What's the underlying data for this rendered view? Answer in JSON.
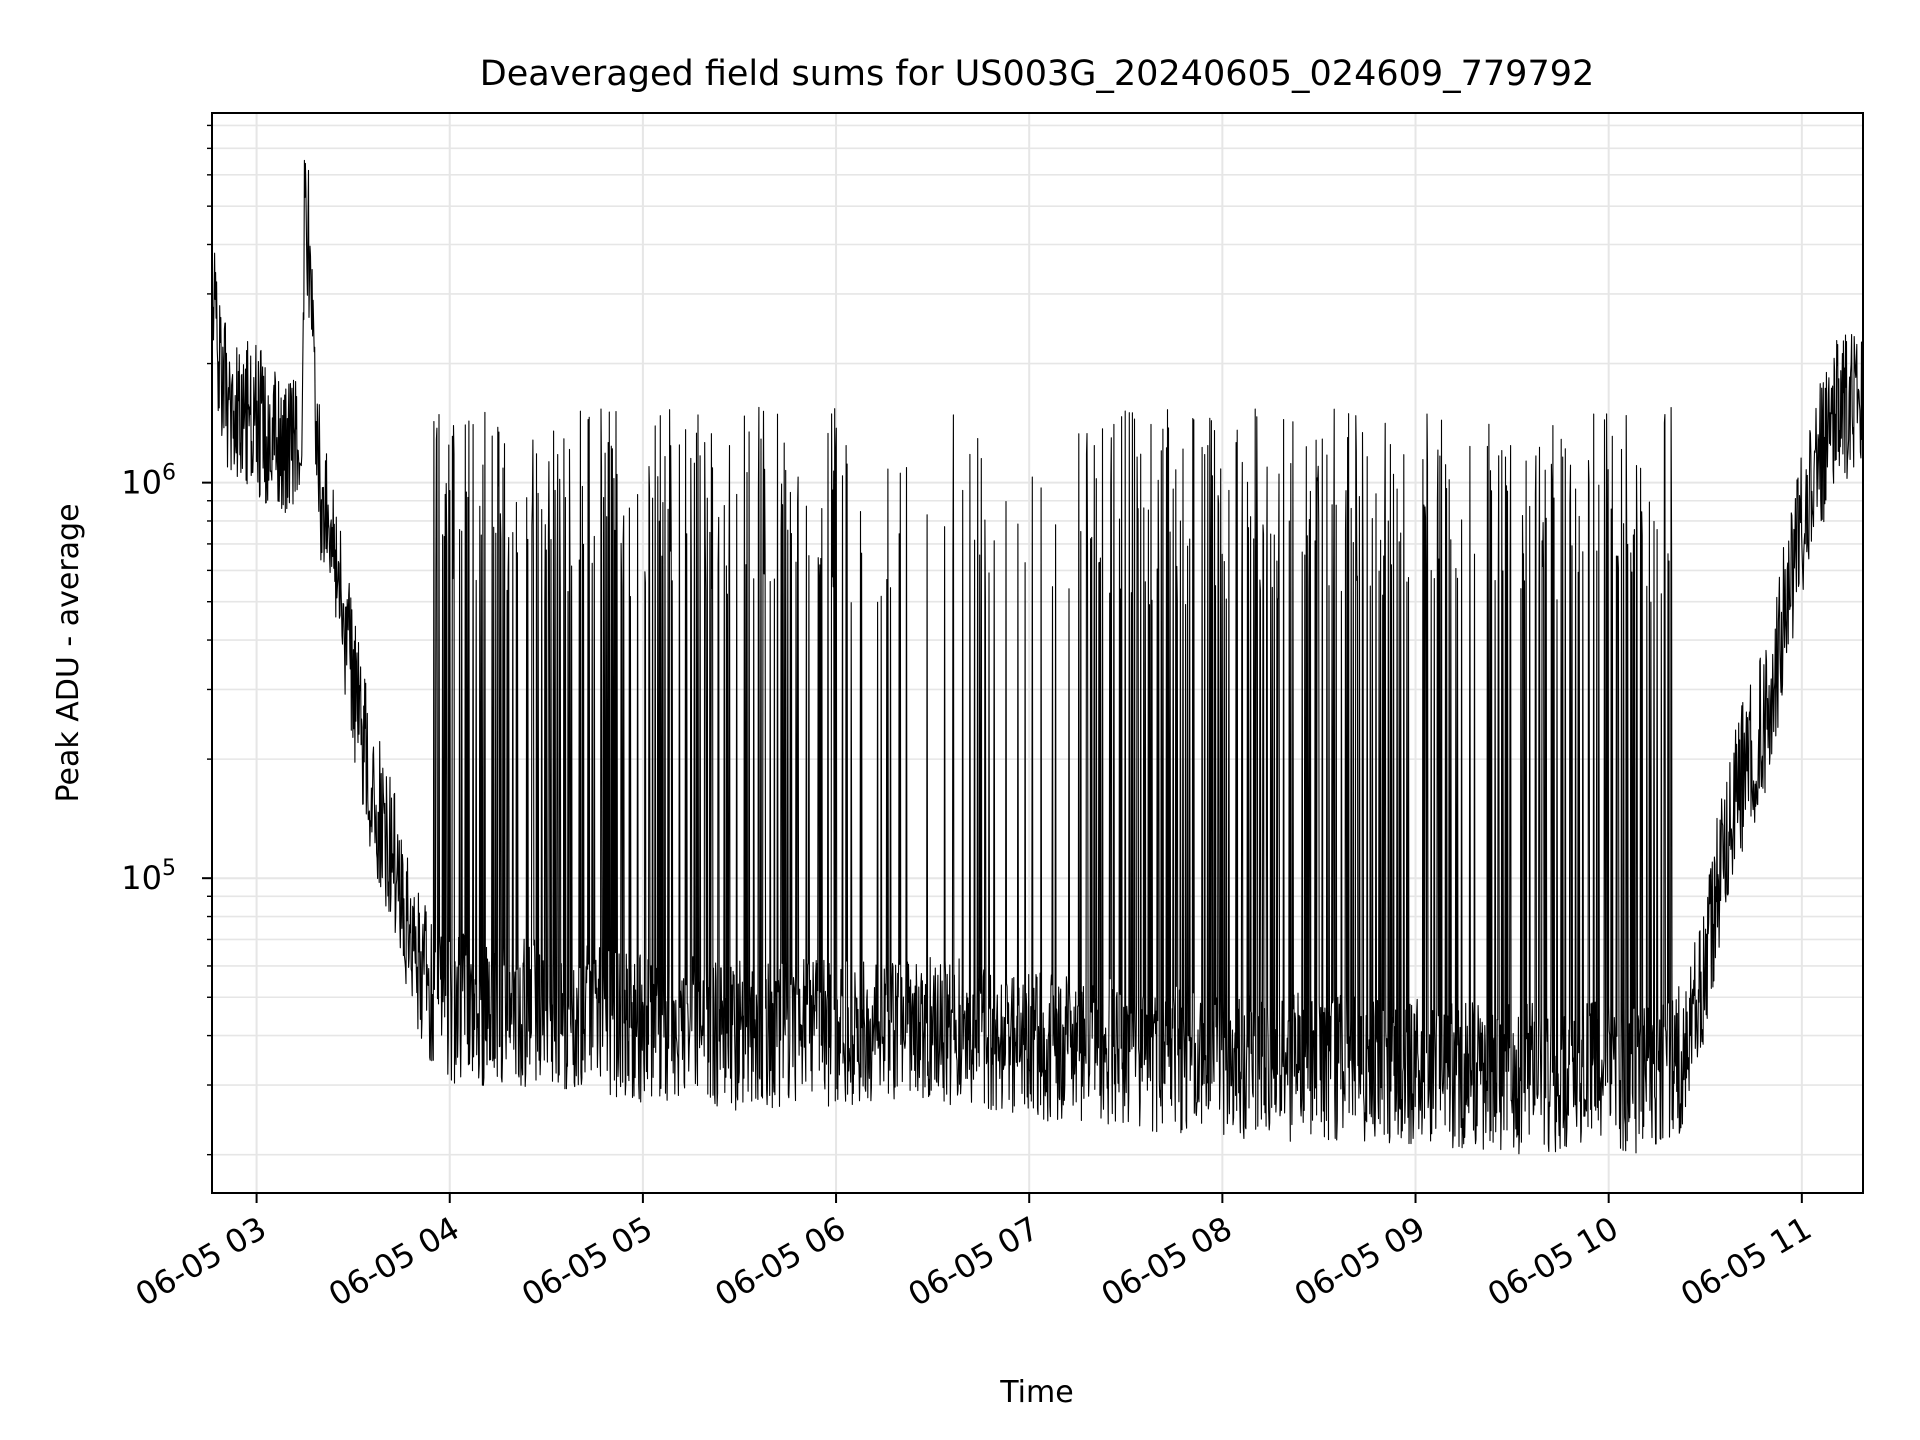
{
  "chart_data": {
    "type": "line",
    "title": "Deaveraged field sums for US003G_20240605_024609_779792",
    "xlabel": "Time",
    "ylabel": "Peak ADU - average",
    "yscale": "log",
    "ylim": [
      16000,
      8600000
    ],
    "xlim": [
      "2024-06-05T02:46:09",
      "2024-06-05T11:19:00"
    ],
    "x_tick_labels": [
      "06-05 03",
      "06-05 04",
      "06-05 05",
      "06-05 06",
      "06-05 07",
      "06-05 08",
      "06-05 09",
      "06-05 10",
      "06-05 11"
    ],
    "x_tick_values": [
      "2024-06-05T03:00",
      "2024-06-05T04:00",
      "2024-06-05T05:00",
      "2024-06-05T06:00",
      "2024-06-05T07:00",
      "2024-06-05T08:00",
      "2024-06-05T09:00",
      "2024-06-05T10:00",
      "2024-06-05T11:00"
    ],
    "y_tick_labels": [
      {
        "value": 100000,
        "base": "10",
        "exp": "5"
      },
      {
        "value": 1000000,
        "base": "10",
        "exp": "6"
      }
    ],
    "grid": true,
    "line_color": "#000000",
    "grid_color": "#e6e6e6",
    "series": [
      {
        "x": [
          "02:46",
          "02:50",
          "02:55",
          "03:00",
          "03:05",
          "03:10",
          "03:14",
          "03:15",
          "03:20",
          "03:25",
          "03:30",
          "03:35",
          "03:40",
          "03:45",
          "03:50",
          "03:55",
          "04:00",
          "04:30",
          "05:00",
          "05:30",
          "06:00",
          "06:30",
          "07:00",
          "07:30",
          "08:00",
          "08:30",
          "09:00",
          "09:30",
          "10:00",
          "10:10",
          "10:20",
          "10:25",
          "10:30",
          "10:35",
          "10:40",
          "10:45",
          "10:50",
          "10:55",
          "11:00",
          "11:05",
          "11:10",
          "11:15",
          "11:19"
        ],
        "y": [
          2900000,
          1700000,
          1500000,
          1450000,
          1300000,
          1250000,
          1100000,
          6200000,
          900000,
          600000,
          320000,
          180000,
          130000,
          95000,
          60000,
          50000,
          47000,
          45000,
          42000,
          40000,
          41000,
          42000,
          38000,
          36000,
          34000,
          33000,
          32000,
          31000,
          32000,
          31000,
          33000,
          38000,
          60000,
          110000,
          170000,
          210000,
          270000,
          500000,
          800000,
          1100000,
          1500000,
          1600000,
          1550000
        ],
        "spikes_peak_approx": 1100000,
        "spikes_window": [
          "03:55",
          "10:20"
        ]
      }
    ]
  }
}
